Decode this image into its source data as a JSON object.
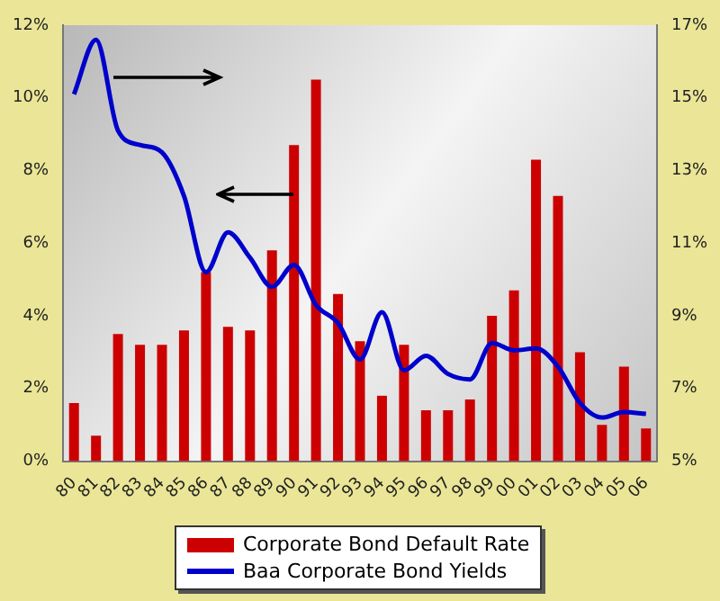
{
  "chart_data": {
    "type": "bar",
    "categories": [
      "80",
      "81",
      "82",
      "83",
      "84",
      "85",
      "86",
      "87",
      "88",
      "89",
      "90",
      "91",
      "92",
      "93",
      "94",
      "95",
      "96",
      "97",
      "98",
      "99",
      "00",
      "01",
      "02",
      "03",
      "04",
      "05",
      "06"
    ],
    "series": [
      {
        "name": "Corporate Bond Default Rate",
        "color": "#cc0000",
        "values": [
          1.6,
          0.7,
          3.5,
          3.2,
          3.2,
          3.6,
          5.2,
          3.7,
          3.6,
          5.8,
          8.7,
          10.5,
          4.6,
          3.3,
          1.8,
          3.2,
          1.4,
          1.4,
          1.7,
          4.0,
          4.7,
          8.3,
          7.3,
          3.0,
          1.0,
          2.6,
          0.9
        ]
      },
      {
        "name": "Baa Corporate Bond Yields",
        "type": "line",
        "axis": "y2",
        "color": "#0000cc",
        "values": [
          15.1,
          16.6,
          14.1,
          13.7,
          13.5,
          12.3,
          10.2,
          11.3,
          10.6,
          9.8,
          10.4,
          9.3,
          8.8,
          7.8,
          9.1,
          7.5,
          7.9,
          7.4,
          7.25,
          8.25,
          8.05,
          8.1,
          7.6,
          6.6,
          6.2,
          6.35,
          6.3
        ]
      }
    ],
    "ylim": [
      0,
      12
    ],
    "yticks": [
      {
        "value": 0,
        "label": "0%"
      },
      {
        "value": 2,
        "label": "2%"
      },
      {
        "value": 4,
        "label": "4%"
      },
      {
        "value": 6,
        "label": "6%"
      },
      {
        "value": 8,
        "label": "8%"
      },
      {
        "value": 10,
        "label": "10%"
      },
      {
        "value": 12,
        "label": "12%"
      }
    ],
    "y2lim": [
      5,
      17
    ],
    "y2ticks": [
      {
        "value": 5,
        "label": "5%"
      },
      {
        "value": 7,
        "label": "7%"
      },
      {
        "value": 9,
        "label": "9%"
      },
      {
        "value": 11,
        "label": "11%"
      },
      {
        "value": 13,
        "label": "13%"
      },
      {
        "value": 15,
        "label": "15%"
      },
      {
        "value": 17,
        "label": "17%"
      }
    ],
    "legend": "bottom",
    "grid": false,
    "marker": "none",
    "line_style": "solid"
  }
}
